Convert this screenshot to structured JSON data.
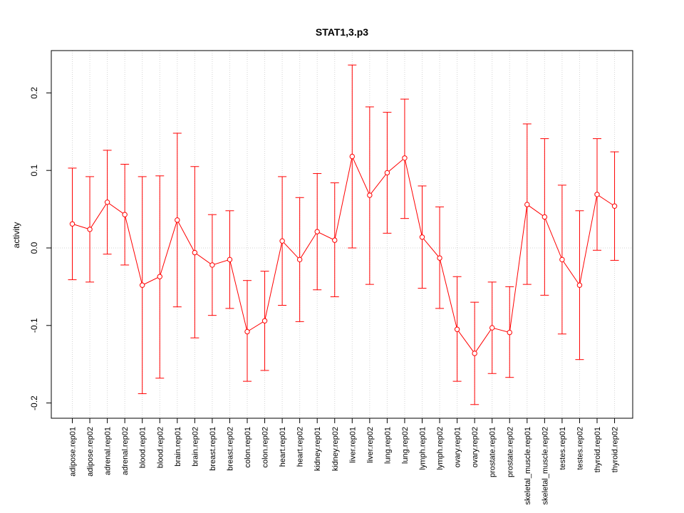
{
  "chart_data": {
    "type": "line",
    "title": "STAT1,3.p3",
    "xlabel": "",
    "ylabel": "activity",
    "ylim": [
      -0.22,
      0.25
    ],
    "yticks": [
      -0.2,
      -0.1,
      0.0,
      0.1,
      0.2
    ],
    "ytick_labels": [
      "-0.2",
      "-0.1",
      "0.0",
      "0.1",
      "0.2"
    ],
    "grid": true,
    "line_color": "#ff0000",
    "grid_color": "#d3d3d3",
    "categories": [
      "adipose.rep01",
      "adipose.rep02",
      "adrenal.rep01",
      "adrenal.rep02",
      "blood.rep01",
      "blood.rep02",
      "brain.rep01",
      "brain.rep02",
      "breast.rep01",
      "breast.rep02",
      "colon.rep01",
      "colon.rep02",
      "heart.rep01",
      "heart.rep02",
      "kidney.rep01",
      "kidney.rep02",
      "liver.rep01",
      "liver.rep02",
      "lung.rep01",
      "lung.rep02",
      "lymph.rep01",
      "lymph.rep02",
      "ovary.rep01",
      "ovary.rep02",
      "prostate.rep01",
      "prostate.rep02",
      "skeletal_muscle.rep01",
      "skeletal_muscle.rep02",
      "testes.rep01",
      "testes.rep02",
      "thyroid.rep01",
      "thyroid.rep02"
    ],
    "series": [
      {
        "values": [
          0.031,
          0.024,
          0.059,
          0.043,
          -0.048,
          -0.037,
          0.036,
          -0.006,
          -0.022,
          -0.015,
          -0.108,
          -0.094,
          0.009,
          -0.015,
          0.021,
          0.01,
          0.118,
          0.068,
          0.097,
          0.116,
          0.014,
          -0.013,
          -0.105,
          -0.136,
          -0.103,
          -0.109,
          0.056,
          0.04,
          -0.015,
          -0.048,
          0.069,
          0.054
        ],
        "upper": [
          0.103,
          0.092,
          0.126,
          0.108,
          0.092,
          0.093,
          0.148,
          0.105,
          0.043,
          0.048,
          -0.042,
          -0.03,
          0.092,
          0.065,
          0.096,
          0.084,
          0.236,
          0.182,
          0.175,
          0.192,
          0.08,
          0.053,
          -0.037,
          -0.07,
          -0.044,
          -0.05,
          0.16,
          0.141,
          0.081,
          0.048,
          0.141,
          0.124
        ],
        "lower": [
          -0.041,
          -0.044,
          -0.008,
          -0.022,
          -0.188,
          -0.168,
          -0.076,
          -0.116,
          -0.087,
          -0.078,
          -0.172,
          -0.158,
          -0.074,
          -0.095,
          -0.054,
          -0.063,
          0.0,
          -0.047,
          0.019,
          0.038,
          -0.052,
          -0.078,
          -0.172,
          -0.202,
          -0.162,
          -0.167,
          -0.047,
          -0.061,
          -0.111,
          -0.144,
          -0.003,
          -0.016
        ]
      }
    ]
  }
}
